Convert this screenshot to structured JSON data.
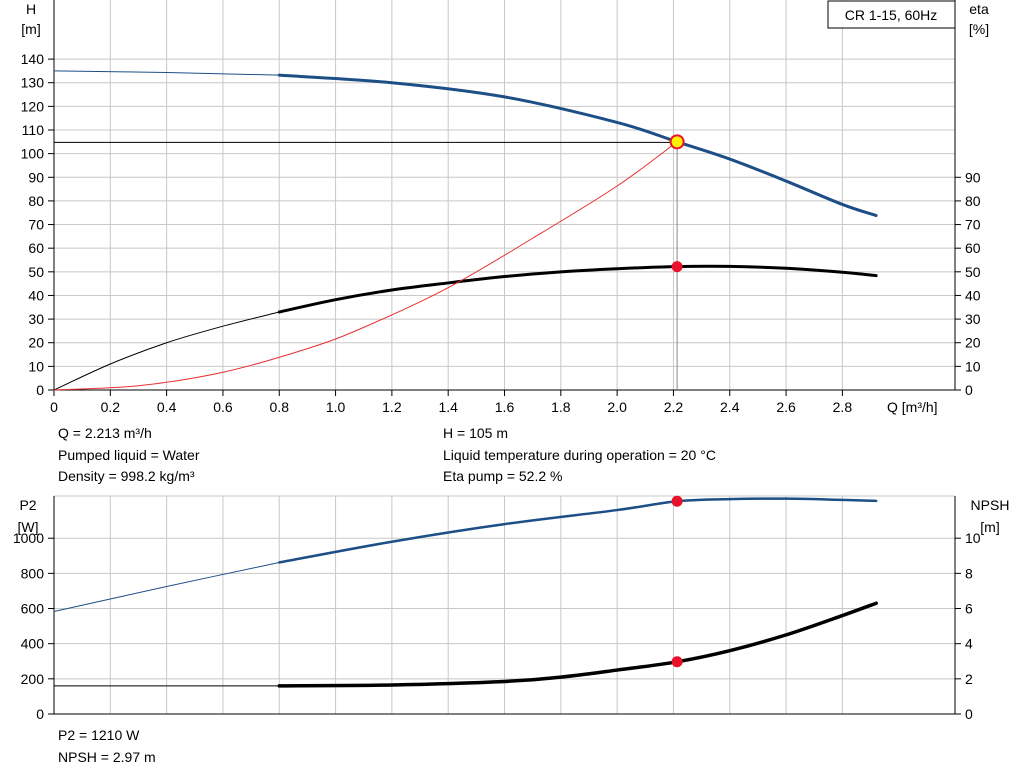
{
  "title_box": "CR 1-15, 60Hz",
  "colors": {
    "head": "#1d4f86",
    "eta": "#000000",
    "system": "#e8302f",
    "p2": "#1d4f86",
    "npsh": "#000000",
    "marker": "#e8102a",
    "duty": "#ffef00",
    "grid": "#c8c8c8"
  },
  "top_info": {
    "left": [
      "Q = 2.213 m³/h",
      "Pumped liquid = Water",
      "Density = 998.2 kg/m³"
    ],
    "right": [
      "H = 105 m",
      "Liquid temperature during operation = 20 °C",
      "Eta pump = 52.2 %"
    ]
  },
  "bottom_info": [
    "P2 = 1210 W",
    "NPSH = 2.97 m"
  ],
  "chart_data": [
    {
      "type": "line",
      "x_axis": {
        "label": "Q [m³/h]",
        "lim": [
          0,
          3.2
        ],
        "ticks": [
          0,
          0.2,
          0.4,
          0.6,
          0.8,
          1.0,
          1.2,
          1.4,
          1.6,
          1.8,
          2.0,
          2.2,
          2.4,
          2.6,
          2.8
        ],
        "tick_labels": [
          "0",
          "0.2",
          "0.4",
          "0.6",
          "0.8",
          "1.0",
          "1.2",
          "1.4",
          "1.6",
          "1.8",
          "2.0",
          "2.2",
          "2.4",
          "2.6",
          "2.8"
        ]
      },
      "y_left": {
        "label": [
          "H",
          "[m]"
        ],
        "lim": [
          0,
          165
        ],
        "ticks": [
          0,
          10,
          20,
          30,
          40,
          50,
          60,
          70,
          80,
          90,
          100,
          110,
          120,
          130,
          140
        ]
      },
      "y_right": {
        "label": [
          "eta",
          "[%]"
        ],
        "lim": [
          0,
          165
        ],
        "ticks": [
          0,
          10,
          20,
          30,
          40,
          50,
          60,
          70,
          80,
          90
        ]
      },
      "grid": true,
      "series": [
        {
          "key": "head",
          "axis": "left",
          "x": [
            0,
            0.4,
            0.8,
            1.2,
            1.6,
            2.0,
            2.213,
            2.4,
            2.6,
            2.8,
            2.92
          ],
          "y": [
            135,
            134.3,
            133.2,
            130.0,
            124.0,
            113.2,
            105,
            97.7,
            88.4,
            78.5,
            73.8
          ],
          "thin_until": 0.8
        },
        {
          "key": "eta",
          "axis": "right",
          "x": [
            0,
            0.2,
            0.4,
            0.6,
            0.8,
            1.0,
            1.2,
            1.4,
            1.6,
            1.8,
            2.0,
            2.2,
            2.4,
            2.6,
            2.8,
            2.92
          ],
          "y": [
            0,
            11,
            20,
            27,
            33,
            38.2,
            42.3,
            45.3,
            48,
            50,
            51.3,
            52.2,
            52.3,
            51.5,
            49.8,
            48.4
          ],
          "thin_until": 0.8
        },
        {
          "key": "system",
          "axis": "left",
          "x": [
            0,
            0.3,
            0.6,
            0.9,
            1.1,
            1.4,
            1.7,
            2.0,
            2.213
          ],
          "y": [
            0,
            1.8,
            7.5,
            17.5,
            26.5,
            43.3,
            64.2,
            86.3,
            105
          ]
        }
      ],
      "duty_point": {
        "x": 2.213,
        "y": 105
      },
      "markers": [
        {
          "x": 2.213,
          "y": 52.2,
          "axis": "right"
        }
      ]
    },
    {
      "type": "line",
      "x_lim": [
        0,
        3.2
      ],
      "y_left": {
        "label": [
          "P2",
          "[W]"
        ],
        "lim": [
          0,
          1240
        ],
        "ticks": [
          0,
          200,
          400,
          600,
          800,
          1000
        ],
        "top_tick_label": "W"
      },
      "y_right": {
        "label": [
          "NPSH",
          "[m]"
        ],
        "lim": [
          0,
          12.4
        ],
        "ticks": [
          0,
          2,
          4,
          6,
          8,
          10
        ]
      },
      "grid": true,
      "series": [
        {
          "key": "p2",
          "axis": "left",
          "x": [
            0,
            0.4,
            0.8,
            1.2,
            1.6,
            2.0,
            2.213,
            2.4,
            2.6,
            2.8,
            2.92
          ],
          "y": [
            583,
            725,
            862,
            980,
            1080,
            1160,
            1210,
            1222,
            1225,
            1218,
            1212
          ],
          "thin_until": 0.8
        },
        {
          "key": "npsh",
          "axis": "right",
          "x": [
            0,
            0.8,
            1.2,
            1.6,
            1.8,
            2.0,
            2.213,
            2.4,
            2.6,
            2.8,
            2.92
          ],
          "y": [
            1.6,
            1.6,
            1.65,
            1.85,
            2.1,
            2.5,
            2.97,
            3.6,
            4.5,
            5.6,
            6.3
          ],
          "thin_until": 0.8
        }
      ],
      "markers": [
        {
          "x": 2.213,
          "y": 1210,
          "axis": "left"
        },
        {
          "x": 2.213,
          "y": 2.97,
          "axis": "right"
        }
      ]
    }
  ]
}
